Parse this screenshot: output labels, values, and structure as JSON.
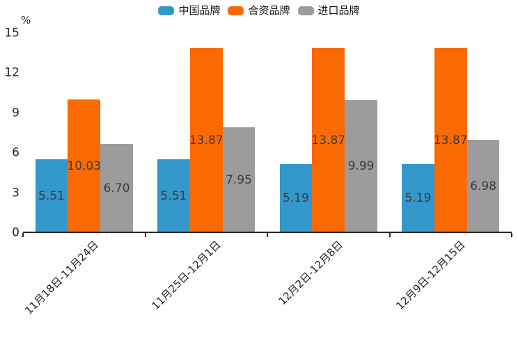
{
  "chart_data": {
    "type": "bar",
    "title": "",
    "ylabel": "%",
    "categories": [
      "11月18日-11月24日",
      "11月25日-12月1日",
      "12月2日-12月8日",
      "12月9日-12月15日"
    ],
    "series": [
      {
        "name": "中国品牌",
        "color": "#3398CB",
        "values": [
          5.51,
          5.51,
          5.19,
          5.19
        ]
      },
      {
        "name": "合资品牌",
        "color": "#FB6A02",
        "values": [
          10.03,
          13.87,
          13.87,
          13.87
        ]
      },
      {
        "name": "进口品牌",
        "color": "#9C9C9C",
        "values": [
          6.7,
          7.95,
          9.99,
          6.98
        ]
      }
    ],
    "value_label_format": "2-decimals",
    "ylim": [
      0,
      15
    ],
    "yticks": [
      0,
      3,
      6,
      9,
      12,
      15
    ],
    "legend_position": "top-center",
    "grid": false,
    "bar_label_position": "center-of-bar",
    "xtick_rotation_deg": 45
  },
  "colors": {
    "axis": "#262626",
    "tick_text": "#262626",
    "bar_label_text": "#3b3b3b",
    "background": "#ffffff"
  }
}
